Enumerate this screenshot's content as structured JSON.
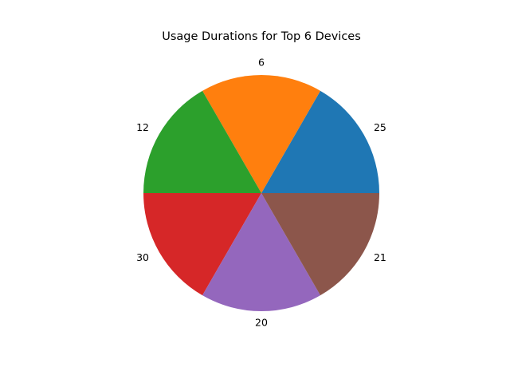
{
  "chart_data": {
    "type": "pie",
    "title": "Usage Durations for Top 6 Devices",
    "categories": [
      "25",
      "6",
      "12",
      "30",
      "20",
      "21"
    ],
    "values": [
      1,
      1,
      1,
      1,
      1,
      1
    ],
    "colors": [
      "#1f77b4",
      "#ff7f0e",
      "#2ca02c",
      "#d62728",
      "#9467bd",
      "#8c564b"
    ],
    "start_angle_deg": 0,
    "direction": "counterclockwise",
    "legend": "none"
  }
}
